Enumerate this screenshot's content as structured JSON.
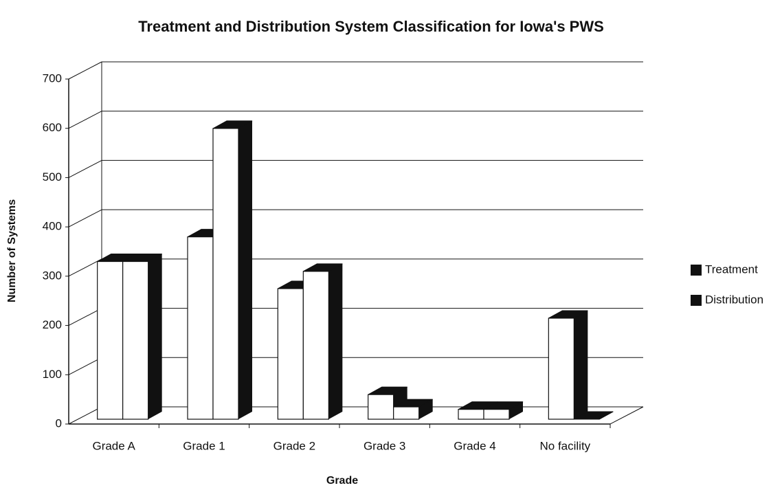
{
  "chart_data": {
    "type": "bar3d",
    "title": "Treatment and Distribution System Classification for Iowa's PWS",
    "x_label": "Grade",
    "y_label": "Number of Systems",
    "categories": [
      "Grade A",
      "Grade 1",
      "Grade 2",
      "Grade 3",
      "Grade 4",
      "No facility"
    ],
    "series": [
      {
        "name": "Treatment",
        "color": "#111111",
        "values": [
          320,
          370,
          265,
          50,
          20,
          205
        ]
      },
      {
        "name": "Distribution",
        "color": "#111111",
        "values": [
          320,
          590,
          300,
          25,
          20,
          0
        ]
      }
    ],
    "ylim": [
      0,
      700
    ],
    "yticks": [
      0,
      100,
      200,
      300,
      400,
      500,
      600,
      700
    ],
    "grid": true,
    "legend": "right"
  }
}
